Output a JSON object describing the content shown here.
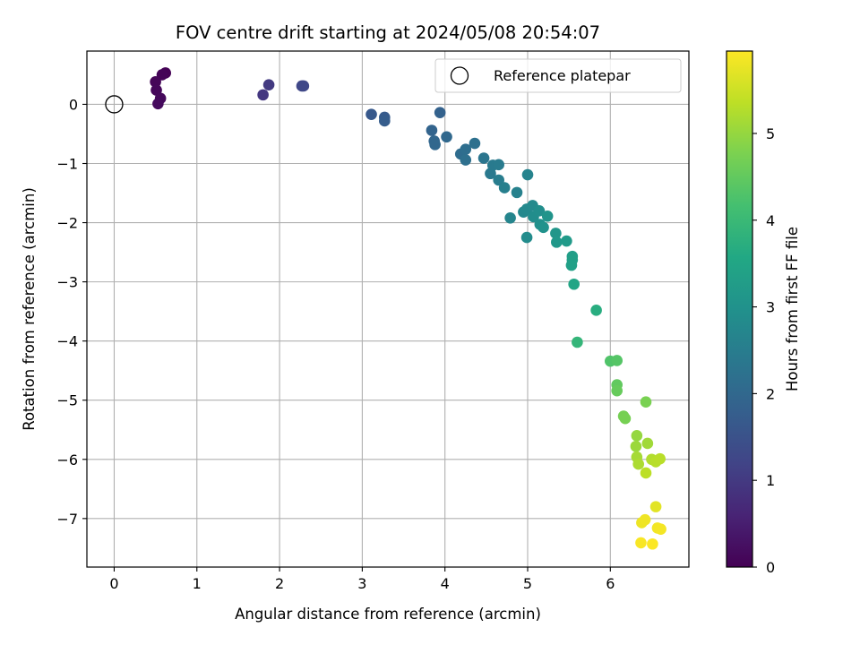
{
  "chart_data": {
    "type": "scatter",
    "title": "FOV centre drift starting at 2024/05/08 20:54:07",
    "xlabel": "Angular distance from reference (arcmin)",
    "ylabel": "Rotation from reference (arcmin)",
    "xlim": [
      -0.33,
      6.95
    ],
    "ylim": [
      -7.82,
      0.9
    ],
    "xticks": [
      0,
      1,
      2,
      3,
      4,
      5,
      6
    ],
    "yticks": [
      0,
      -1,
      -2,
      -3,
      -4,
      -5,
      -6,
      -7
    ],
    "grid": true,
    "colormap": "viridis",
    "colorbar": {
      "label": "Hours from first FF file",
      "range": [
        0,
        5.95
      ],
      "ticks": [
        0,
        1,
        2,
        3,
        4,
        5
      ]
    },
    "legend": {
      "placement": "top-right",
      "entries": [
        "Reference platepar"
      ]
    },
    "reference_point": {
      "x": 0,
      "y": 0
    },
    "points": [
      {
        "x": 0.62,
        "y": 0.53,
        "h": 0.02
      },
      {
        "x": 0.58,
        "y": 0.5,
        "h": 0.05
      },
      {
        "x": 0.5,
        "y": 0.38,
        "h": 0.08
      },
      {
        "x": 0.51,
        "y": 0.24,
        "h": 0.1
      },
      {
        "x": 0.56,
        "y": 0.1,
        "h": 0.13
      },
      {
        "x": 0.53,
        "y": 0.01,
        "h": 0.16
      },
      {
        "x": 1.8,
        "y": 0.16,
        "h": 0.95
      },
      {
        "x": 1.87,
        "y": 0.33,
        "h": 1.0
      },
      {
        "x": 2.27,
        "y": 0.31,
        "h": 1.25
      },
      {
        "x": 2.29,
        "y": 0.31,
        "h": 1.28
      },
      {
        "x": 3.11,
        "y": -0.17,
        "h": 1.65
      },
      {
        "x": 3.27,
        "y": -0.22,
        "h": 1.7
      },
      {
        "x": 3.27,
        "y": -0.28,
        "h": 1.73
      },
      {
        "x": 3.84,
        "y": -0.44,
        "h": 1.9
      },
      {
        "x": 3.87,
        "y": -0.62,
        "h": 1.95
      },
      {
        "x": 3.88,
        "y": -0.68,
        "h": 1.98
      },
      {
        "x": 3.94,
        "y": -0.14,
        "h": 1.85
      },
      {
        "x": 4.02,
        "y": -0.55,
        "h": 2.0
      },
      {
        "x": 4.19,
        "y": -0.84,
        "h": 2.1
      },
      {
        "x": 4.25,
        "y": -0.76,
        "h": 2.15
      },
      {
        "x": 4.25,
        "y": -0.94,
        "h": 2.18
      },
      {
        "x": 4.36,
        "y": -0.66,
        "h": 2.2
      },
      {
        "x": 4.47,
        "y": -0.91,
        "h": 2.3
      },
      {
        "x": 4.55,
        "y": -1.17,
        "h": 2.4
      },
      {
        "x": 4.58,
        "y": -1.03,
        "h": 2.42
      },
      {
        "x": 4.65,
        "y": -1.02,
        "h": 2.45
      },
      {
        "x": 4.65,
        "y": -1.28,
        "h": 2.5
      },
      {
        "x": 4.72,
        "y": -1.41,
        "h": 2.55
      },
      {
        "x": 4.79,
        "y": -1.92,
        "h": 2.7
      },
      {
        "x": 4.87,
        "y": -1.49,
        "h": 2.6
      },
      {
        "x": 4.95,
        "y": -1.82,
        "h": 2.75
      },
      {
        "x": 4.99,
        "y": -1.77,
        "h": 2.78
      },
      {
        "x": 5.0,
        "y": -1.19,
        "h": 2.65
      },
      {
        "x": 4.99,
        "y": -2.25,
        "h": 2.85
      },
      {
        "x": 5.06,
        "y": -1.71,
        "h": 2.8
      },
      {
        "x": 5.07,
        "y": -1.9,
        "h": 2.88
      },
      {
        "x": 5.14,
        "y": -1.8,
        "h": 2.9
      },
      {
        "x": 5.15,
        "y": -2.03,
        "h": 2.95
      },
      {
        "x": 5.19,
        "y": -2.08,
        "h": 3.0
      },
      {
        "x": 5.24,
        "y": -1.89,
        "h": 3.05
      },
      {
        "x": 5.34,
        "y": -2.18,
        "h": 3.1
      },
      {
        "x": 5.35,
        "y": -2.33,
        "h": 3.15
      },
      {
        "x": 5.47,
        "y": -2.31,
        "h": 3.2
      },
      {
        "x": 5.54,
        "y": -2.57,
        "h": 3.3
      },
      {
        "x": 5.54,
        "y": -2.63,
        "h": 3.33
      },
      {
        "x": 5.53,
        "y": -2.72,
        "h": 3.36
      },
      {
        "x": 5.56,
        "y": -3.04,
        "h": 3.5
      },
      {
        "x": 5.6,
        "y": -4.02,
        "h": 3.9
      },
      {
        "x": 5.83,
        "y": -3.48,
        "h": 3.7
      },
      {
        "x": 6.0,
        "y": -4.34,
        "h": 4.3
      },
      {
        "x": 6.08,
        "y": -4.33,
        "h": 4.35
      },
      {
        "x": 6.08,
        "y": -4.74,
        "h": 4.5
      },
      {
        "x": 6.08,
        "y": -4.84,
        "h": 4.55
      },
      {
        "x": 6.16,
        "y": -5.27,
        "h": 4.7
      },
      {
        "x": 6.18,
        "y": -5.31,
        "h": 4.72
      },
      {
        "x": 6.43,
        "y": -5.03,
        "h": 4.75
      },
      {
        "x": 6.32,
        "y": -5.6,
        "h": 5.0
      },
      {
        "x": 6.31,
        "y": -5.78,
        "h": 5.05
      },
      {
        "x": 6.45,
        "y": -5.73,
        "h": 5.1
      },
      {
        "x": 6.32,
        "y": -5.96,
        "h": 5.15
      },
      {
        "x": 6.34,
        "y": -6.08,
        "h": 5.2
      },
      {
        "x": 6.5,
        "y": -6.0,
        "h": 5.25
      },
      {
        "x": 6.55,
        "y": -6.04,
        "h": 5.3
      },
      {
        "x": 6.6,
        "y": -5.99,
        "h": 5.32
      },
      {
        "x": 6.43,
        "y": -6.23,
        "h": 5.35
      },
      {
        "x": 6.55,
        "y": -6.8,
        "h": 5.7
      },
      {
        "x": 6.38,
        "y": -7.07,
        "h": 5.8
      },
      {
        "x": 6.42,
        "y": -7.02,
        "h": 5.82
      },
      {
        "x": 6.57,
        "y": -7.16,
        "h": 5.85
      },
      {
        "x": 6.61,
        "y": -7.18,
        "h": 5.87
      },
      {
        "x": 6.37,
        "y": -7.41,
        "h": 5.9
      },
      {
        "x": 6.51,
        "y": -7.43,
        "h": 5.93
      }
    ]
  }
}
